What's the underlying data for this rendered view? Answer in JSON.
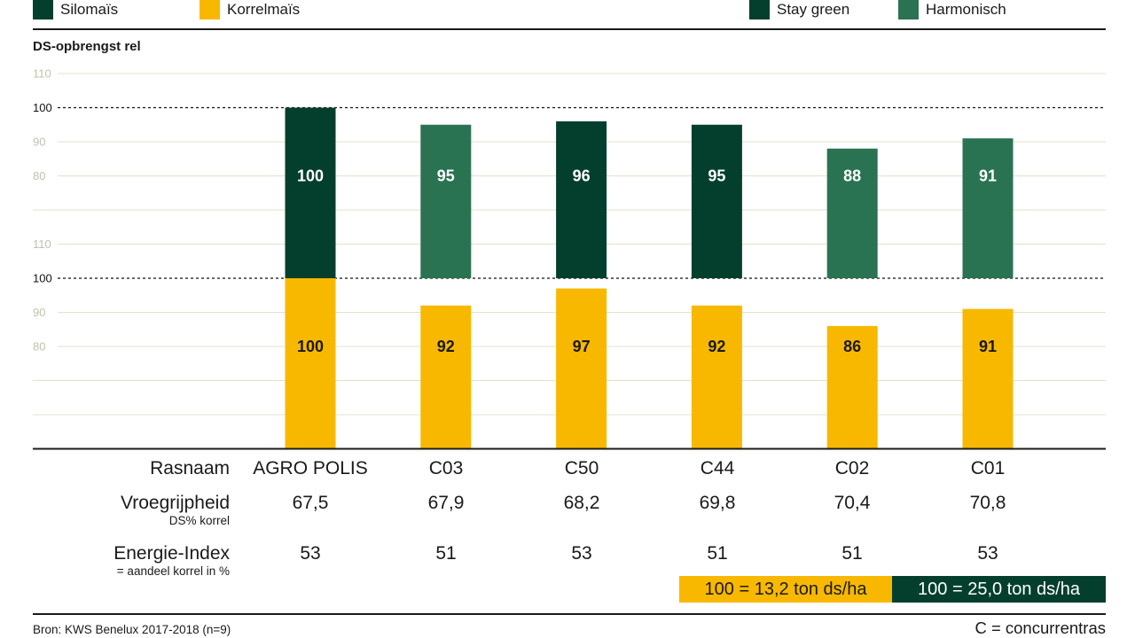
{
  "chart_data": {
    "type": "bar",
    "ylabel": "DS-opbrengst rel",
    "xlabel": "Rasnaam",
    "categories": [
      "AGRO POLIS",
      "C03",
      "C50",
      "C44",
      "C02",
      "C01"
    ],
    "series": [
      {
        "name": "Silomaïs",
        "values": [
          100,
          95,
          96,
          95,
          88,
          91
        ]
      },
      {
        "name": "Korrelmaïs",
        "values": [
          100,
          92,
          97,
          92,
          86,
          91
        ]
      }
    ],
    "variety_type": [
      "Stay green",
      "Harmonisch",
      "Stay green",
      "Stay green",
      "Harmonisch",
      "Harmonisch"
    ],
    "legend": [
      {
        "label": "Silomaïs",
        "color": "#043f2e"
      },
      {
        "label": "Korrelmaïs",
        "color": "#f8b800"
      },
      {
        "label": "Stay green",
        "color": "#043f2e"
      },
      {
        "label": "Harmonisch",
        "color": "#2a7352"
      }
    ],
    "legend_position": "top",
    "ylim": [
      50,
      110
    ],
    "yticks": [
      80,
      90,
      100,
      110
    ],
    "reference_line": 100,
    "grid": true,
    "table": [
      {
        "label": "Vroegrijpheid",
        "sublabel": "DS% korrel",
        "values": [
          "67,5",
          "67,9",
          "68,2",
          "69,8",
          "70,4",
          "70,8"
        ]
      },
      {
        "label": "Energie-Index",
        "sublabel": "= aandeel korrel in %",
        "values": [
          "53",
          "51",
          "53",
          "51",
          "51",
          "53"
        ]
      }
    ],
    "annotations": [
      {
        "text": "100 = 13,2 ton ds/ha",
        "color": "#f8b800"
      },
      {
        "text": "100 = 25,0 ton ds/ha",
        "color": "#043f2e"
      }
    ],
    "source": "Bron: KWS Benelux 2017-2018 (n=9)",
    "note": "C = concurrentras"
  }
}
